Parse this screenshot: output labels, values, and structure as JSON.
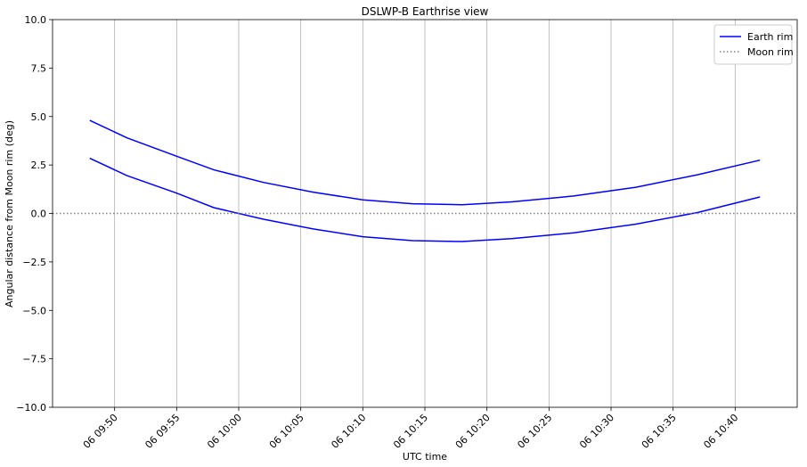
{
  "chart_data": {
    "type": "line",
    "title": "DSLWP-B Earthrise view",
    "xlabel": "UTC time",
    "ylabel": "Angular distance from Moon rim (deg)",
    "x": [
      "06 09:48",
      "06 09:51",
      "06 09:55",
      "06 09:58",
      "06 10:02",
      "06 10:06",
      "06 10:10",
      "06 10:14",
      "06 10:18",
      "06 10:22",
      "06 10:27",
      "06 10:32",
      "06 10:37",
      "06 10:42"
    ],
    "series": [
      {
        "name": "Earth rim",
        "color": "#0000ff",
        "style": "solid",
        "values": [
          [
            4.8,
            3.9,
            2.95,
            2.25,
            1.6,
            1.1,
            0.7,
            0.5,
            0.45,
            0.6,
            0.9,
            1.35,
            2.0,
            2.75
          ],
          [
            2.85,
            1.95,
            1.05,
            0.3,
            -0.3,
            -0.8,
            -1.2,
            -1.4,
            -1.45,
            -1.3,
            -1.0,
            -0.55,
            0.05,
            0.85
          ]
        ]
      },
      {
        "name": "Moon rim",
        "color": "#808080",
        "style": "dotted",
        "hline": 0
      }
    ],
    "xlim": [
      "06 09:45",
      "06 10:45"
    ],
    "xticks": [
      "06 09:50",
      "06 09:55",
      "06 10:00",
      "06 10:05",
      "06 10:10",
      "06 10:15",
      "06 10:20",
      "06 10:25",
      "06 10:30",
      "06 10:35",
      "06 10:40"
    ],
    "ylim": [
      -10,
      10
    ],
    "yticks": [
      {
        "value": -10,
        "label": "−10.0"
      },
      {
        "value": -7.5,
        "label": "−7.5"
      },
      {
        "value": -5,
        "label": "−5.0"
      },
      {
        "value": -2.5,
        "label": "−2.5"
      },
      {
        "value": 0,
        "label": "0.0"
      },
      2.5,
      {
        "value": 5,
        "label": "5.0"
      },
      7.5,
      {
        "value": 10,
        "label": "10.0"
      }
    ],
    "grid": "x",
    "legend": "upper right"
  }
}
